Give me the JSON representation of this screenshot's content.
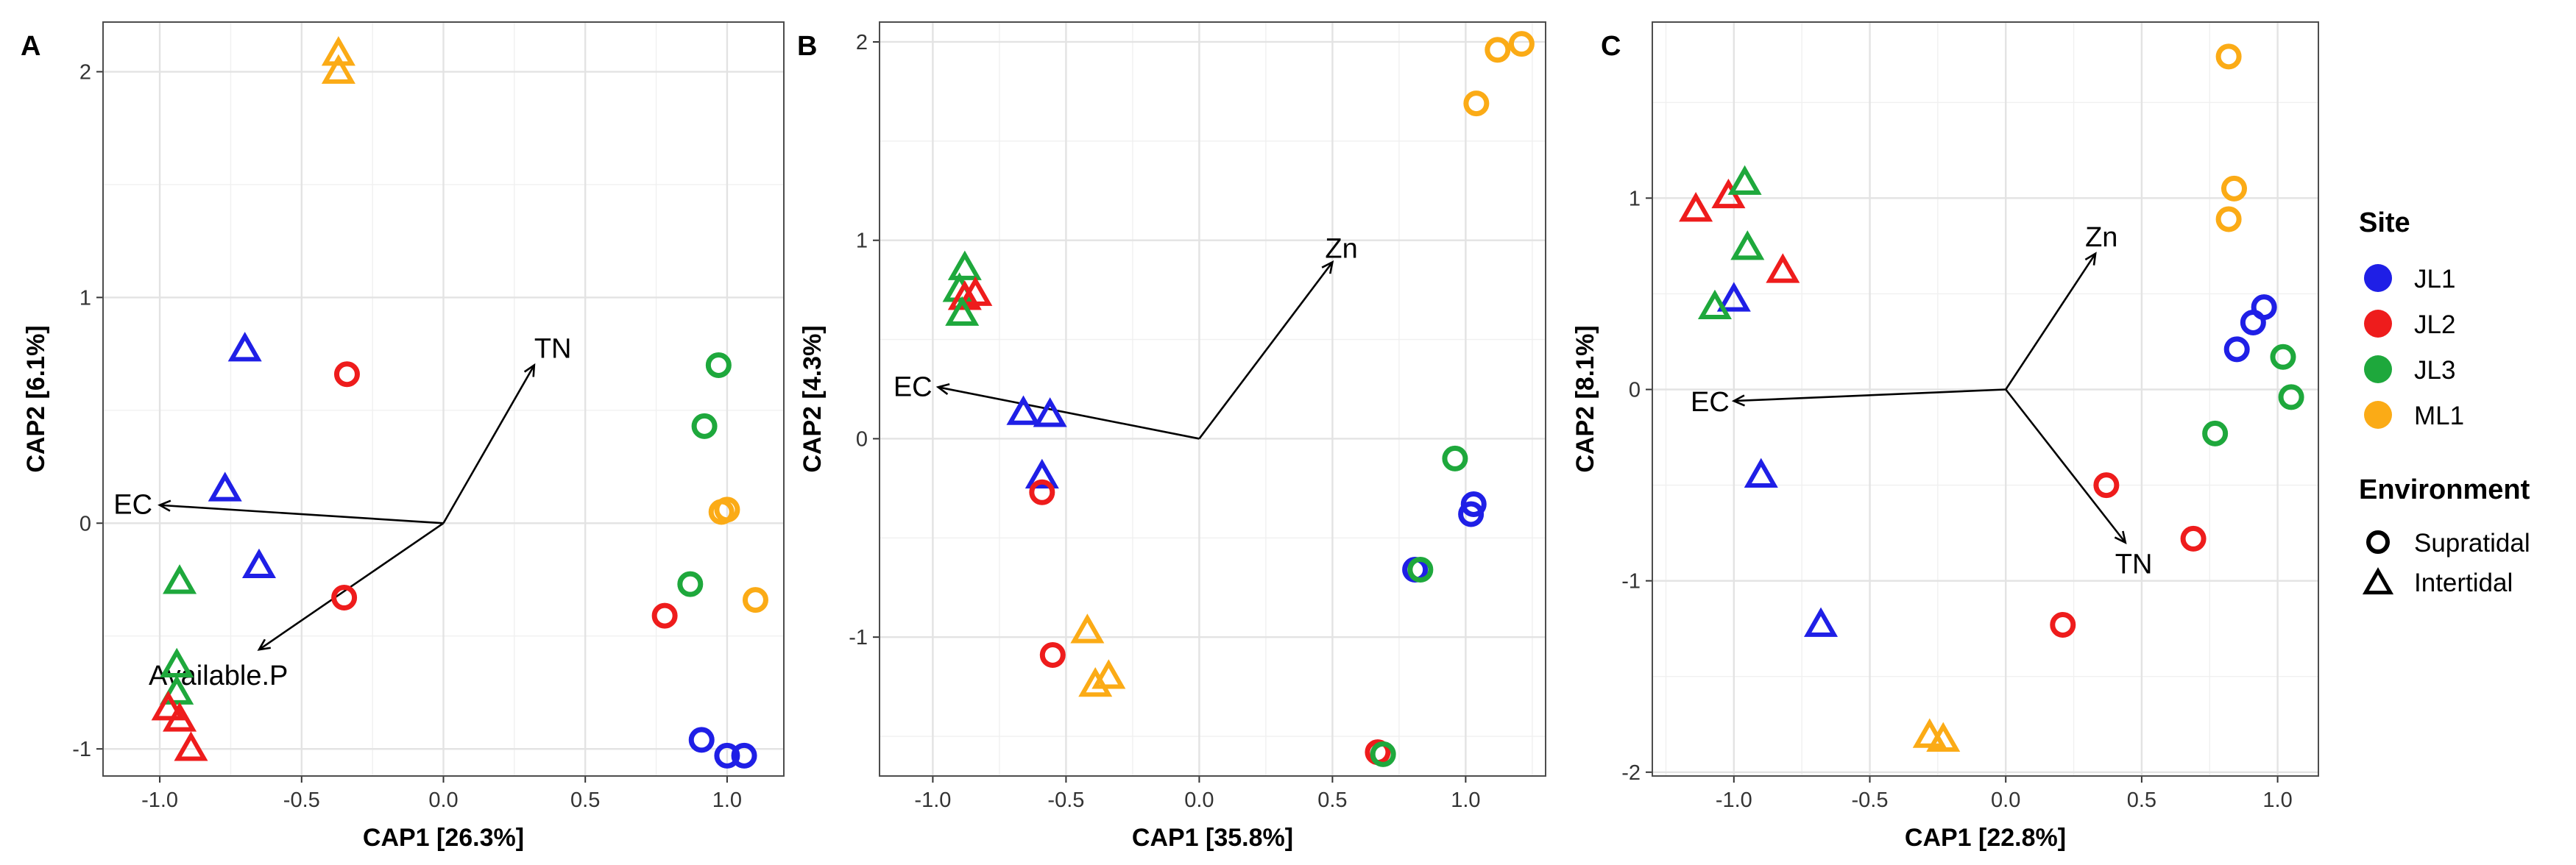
{
  "chart_data": [
    {
      "panel": "A",
      "type": "scatter",
      "xlabel": "CAP1   [26.3%]",
      "ylabel": "CAP2   [6.1%]",
      "xlim": [
        -1.2,
        1.2
      ],
      "ylim": [
        -1.12,
        2.22
      ],
      "xticks": [
        -1.0,
        -0.5,
        0.0,
        0.5,
        1.0
      ],
      "xtick_labels": [
        "-1.0",
        "-0.5",
        "0.0",
        "0.5",
        "1.0"
      ],
      "yticks": [
        -1,
        0,
        1,
        2
      ],
      "ytick_labels": [
        "-1",
        "0",
        "1",
        "2"
      ],
      "vectors": [
        {
          "name": "TN",
          "x": 0.32,
          "y": 0.7
        },
        {
          "name": "EC",
          "x": -1.0,
          "y": 0.08
        },
        {
          "name": "Available.P",
          "x": -0.65,
          "y": -0.56
        }
      ],
      "points": [
        {
          "site": "ML1",
          "env": "Intertidal",
          "x": -0.37,
          "y": 2.08
        },
        {
          "site": "ML1",
          "env": "Intertidal",
          "x": -0.37,
          "y": 2.0
        },
        {
          "site": "JL1",
          "env": "Intertidal",
          "x": -0.7,
          "y": 0.77
        },
        {
          "site": "JL1",
          "env": "Intertidal",
          "x": -0.77,
          "y": 0.15
        },
        {
          "site": "JL1",
          "env": "Intertidal",
          "x": -0.65,
          "y": -0.19
        },
        {
          "site": "JL2",
          "env": "Supratidal",
          "x": -0.34,
          "y": 0.66
        },
        {
          "site": "JL2",
          "env": "Supratidal",
          "x": -0.35,
          "y": -0.33
        },
        {
          "site": "JL3",
          "env": "Intertidal",
          "x": -0.93,
          "y": -0.26
        },
        {
          "site": "JL3",
          "env": "Intertidal",
          "x": -0.94,
          "y": -0.63
        },
        {
          "site": "JL3",
          "env": "Intertidal",
          "x": -0.94,
          "y": -0.75
        },
        {
          "site": "JL2",
          "env": "Intertidal",
          "x": -0.97,
          "y": -0.82
        },
        {
          "site": "JL2",
          "env": "Intertidal",
          "x": -0.93,
          "y": -0.87
        },
        {
          "site": "JL2",
          "env": "Intertidal",
          "x": -0.89,
          "y": -1.0
        },
        {
          "site": "JL3",
          "env": "Supratidal",
          "x": 0.97,
          "y": 0.7
        },
        {
          "site": "JL3",
          "env": "Supratidal",
          "x": 0.92,
          "y": 0.43
        },
        {
          "site": "ML1",
          "env": "Supratidal",
          "x": 0.98,
          "y": 0.05
        },
        {
          "site": "ML1",
          "env": "Supratidal",
          "x": 1.0,
          "y": 0.06
        },
        {
          "site": "ML1",
          "env": "Supratidal",
          "x": 1.1,
          "y": -0.34
        },
        {
          "site": "JL3",
          "env": "Supratidal",
          "x": 0.87,
          "y": -0.27
        },
        {
          "site": "JL2",
          "env": "Supratidal",
          "x": 0.78,
          "y": -0.41
        },
        {
          "site": "JL1",
          "env": "Supratidal",
          "x": 0.91,
          "y": -0.96
        },
        {
          "site": "JL1",
          "env": "Supratidal",
          "x": 1.0,
          "y": -1.03
        },
        {
          "site": "JL1",
          "env": "Supratidal",
          "x": 1.06,
          "y": -1.03
        }
      ]
    },
    {
      "panel": "B",
      "type": "scatter",
      "xlabel": "CAP1   [35.8%]",
      "ylabel": "CAP2   [4.3%]",
      "xlim": [
        -1.2,
        1.3
      ],
      "ylim": [
        -1.7,
        2.1
      ],
      "xticks": [
        -1.0,
        -0.5,
        0.0,
        0.5,
        1.0
      ],
      "xtick_labels": [
        "-1.0",
        "-0.5",
        "0.0",
        "0.5",
        "1.0"
      ],
      "yticks": [
        -1,
        0,
        1,
        2
      ],
      "ytick_labels": [
        "-1",
        "0",
        "1",
        "2"
      ],
      "vectors": [
        {
          "name": "Zn",
          "x": 0.5,
          "y": 0.89
        },
        {
          "name": "EC",
          "x": -0.98,
          "y": 0.26
        }
      ],
      "points": [
        {
          "site": "ML1",
          "env": "Supratidal",
          "x": 1.21,
          "y": 1.99
        },
        {
          "site": "ML1",
          "env": "Supratidal",
          "x": 1.12,
          "y": 1.96
        },
        {
          "site": "ML1",
          "env": "Supratidal",
          "x": 1.04,
          "y": 1.69
        },
        {
          "site": "JL3",
          "env": "Intertidal",
          "x": -0.88,
          "y": 0.86
        },
        {
          "site": "JL3",
          "env": "Intertidal",
          "x": -0.9,
          "y": 0.75
        },
        {
          "site": "JL2",
          "env": "Intertidal",
          "x": -0.84,
          "y": 0.73
        },
        {
          "site": "JL2",
          "env": "Intertidal",
          "x": -0.88,
          "y": 0.71
        },
        {
          "site": "JL3",
          "env": "Intertidal",
          "x": -0.89,
          "y": 0.63
        },
        {
          "site": "JL1",
          "env": "Intertidal",
          "x": -0.66,
          "y": 0.13
        },
        {
          "site": "JL1",
          "env": "Intertidal",
          "x": -0.56,
          "y": 0.12
        },
        {
          "site": "JL1",
          "env": "Intertidal",
          "x": -0.59,
          "y": -0.19
        },
        {
          "site": "JL2",
          "env": "Supratidal",
          "x": -0.59,
          "y": -0.27
        },
        {
          "site": "JL2",
          "env": "Supratidal",
          "x": -0.55,
          "y": -1.09
        },
        {
          "site": "ML1",
          "env": "Intertidal",
          "x": -0.42,
          "y": -0.97
        },
        {
          "site": "ML1",
          "env": "Intertidal",
          "x": -0.34,
          "y": -1.2
        },
        {
          "site": "ML1",
          "env": "Intertidal",
          "x": -0.39,
          "y": -1.24
        },
        {
          "site": "JL3",
          "env": "Supratidal",
          "x": 0.96,
          "y": -0.1
        },
        {
          "site": "JL1",
          "env": "Supratidal",
          "x": 1.03,
          "y": -0.33
        },
        {
          "site": "JL1",
          "env": "Supratidal",
          "x": 1.02,
          "y": -0.38
        },
        {
          "site": "JL1",
          "env": "Supratidal",
          "x": 0.81,
          "y": -0.66
        },
        {
          "site": "JL3",
          "env": "Supratidal",
          "x": 0.83,
          "y": -0.66
        },
        {
          "site": "JL2",
          "env": "Supratidal",
          "x": 0.67,
          "y": -1.58
        },
        {
          "site": "JL3",
          "env": "Supratidal",
          "x": 0.69,
          "y": -1.59
        }
      ]
    },
    {
      "panel": "C",
      "type": "scatter",
      "xlabel": "CAP1   [22.8%]",
      "ylabel": "CAP2   [8.1%]",
      "xlim": [
        -1.3,
        1.15
      ],
      "ylim": [
        -2.02,
        1.92
      ],
      "xticks": [
        -1.0,
        -0.5,
        0.0,
        0.5,
        1.0
      ],
      "xtick_labels": [
        "-1.0",
        "-0.5",
        "0.0",
        "0.5",
        "1.0"
      ],
      "yticks": [
        -2,
        -1,
        0,
        1
      ],
      "ytick_labels": [
        "-2",
        "-1",
        "0",
        "1"
      ],
      "vectors": [
        {
          "name": "Zn",
          "x": 0.33,
          "y": 0.71
        },
        {
          "name": "EC",
          "x": -1.0,
          "y": -0.06
        },
        {
          "name": "TN",
          "x": 0.44,
          "y": -0.8
        }
      ],
      "points": [
        {
          "site": "ML1",
          "env": "Supratidal",
          "x": 0.82,
          "y": 1.74
        },
        {
          "site": "ML1",
          "env": "Supratidal",
          "x": 0.84,
          "y": 1.05
        },
        {
          "site": "ML1",
          "env": "Supratidal",
          "x": 0.82,
          "y": 0.89
        },
        {
          "site": "JL1",
          "env": "Supratidal",
          "x": 0.95,
          "y": 0.43
        },
        {
          "site": "JL1",
          "env": "Supratidal",
          "x": 0.91,
          "y": 0.35
        },
        {
          "site": "JL1",
          "env": "Supratidal",
          "x": 0.85,
          "y": 0.21
        },
        {
          "site": "JL3",
          "env": "Supratidal",
          "x": 1.02,
          "y": 0.17
        },
        {
          "site": "JL3",
          "env": "Supratidal",
          "x": 1.05,
          "y": -0.04
        },
        {
          "site": "JL3",
          "env": "Supratidal",
          "x": 0.77,
          "y": -0.23
        },
        {
          "site": "JL2",
          "env": "Supratidal",
          "x": 0.37,
          "y": -0.5
        },
        {
          "site": "JL2",
          "env": "Supratidal",
          "x": 0.69,
          "y": -0.78
        },
        {
          "site": "JL2",
          "env": "Supratidal",
          "x": 0.21,
          "y": -1.23
        },
        {
          "site": "JL2",
          "env": "Intertidal",
          "x": -1.14,
          "y": 0.94
        },
        {
          "site": "JL2",
          "env": "Intertidal",
          "x": -1.02,
          "y": 1.01
        },
        {
          "site": "JL3",
          "env": "Intertidal",
          "x": -0.96,
          "y": 1.08
        },
        {
          "site": "JL3",
          "env": "Intertidal",
          "x": -0.95,
          "y": 0.74
        },
        {
          "site": "JL2",
          "env": "Intertidal",
          "x": -0.82,
          "y": 0.62
        },
        {
          "site": "JL1",
          "env": "Intertidal",
          "x": -1.0,
          "y": 0.47
        },
        {
          "site": "JL3",
          "env": "Intertidal",
          "x": -1.07,
          "y": 0.43
        },
        {
          "site": "JL1",
          "env": "Intertidal",
          "x": -0.9,
          "y": -0.45
        },
        {
          "site": "JL1",
          "env": "Intertidal",
          "x": -0.68,
          "y": -1.23
        },
        {
          "site": "ML1",
          "env": "Intertidal",
          "x": -0.28,
          "y": -1.81
        },
        {
          "site": "ML1",
          "env": "Intertidal",
          "x": -0.23,
          "y": -1.83
        }
      ]
    }
  ],
  "legend": {
    "site_title": "Site",
    "sites": [
      {
        "name": "JL1",
        "color": "#1f1fe6"
      },
      {
        "name": "JL2",
        "color": "#ee1c1c"
      },
      {
        "name": "JL3",
        "color": "#1ea83c"
      },
      {
        "name": "ML1",
        "color": "#fbab16"
      }
    ],
    "env_title": "Environment",
    "envs": [
      {
        "name": "Supratidal",
        "shape": "circle"
      },
      {
        "name": "Intertidal",
        "shape": "triangle"
      }
    ]
  }
}
